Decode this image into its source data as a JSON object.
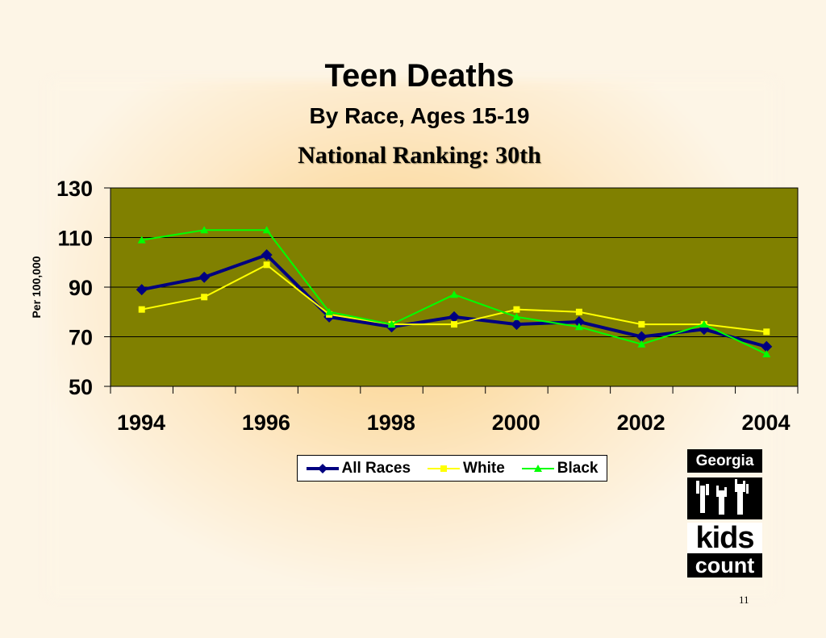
{
  "title": "Teen Deaths",
  "subtitle": "By Race, Ages 15-19",
  "ranking": "National Ranking: 30th",
  "page_number": "11",
  "logo": {
    "top": "Georgia",
    "middle": "kids",
    "bottom": "count"
  },
  "colors": {
    "plot_bg": "#808000",
    "all_races": "#000080",
    "white": "#ffff00",
    "black": "#00ff00"
  },
  "chart_data": {
    "type": "line",
    "title": "Teen Deaths",
    "ylabel": "Per 100,000",
    "xlabel": "",
    "ylim": [
      50,
      130
    ],
    "yticks": [
      50,
      70,
      90,
      110,
      130
    ],
    "xlim": [
      1994,
      2005
    ],
    "xtick_labels": [
      "1994",
      "1996",
      "1998",
      "2000",
      "2002",
      "2004"
    ],
    "x": [
      1994,
      1995,
      1996,
      1997,
      1998,
      1999,
      2000,
      2001,
      2002,
      2003,
      2004
    ],
    "grid": true,
    "legend_position": "bottom",
    "series": [
      {
        "name": "All Races",
        "color": "#000080",
        "marker": "diamond",
        "values": [
          89,
          94,
          103,
          78,
          74,
          78,
          75,
          76,
          70,
          73,
          66
        ]
      },
      {
        "name": "White",
        "color": "#ffff00",
        "marker": "square",
        "values": [
          81,
          86,
          99,
          79,
          75,
          75,
          81,
          80,
          75,
          75,
          72
        ]
      },
      {
        "name": "Black",
        "color": "#00ff00",
        "marker": "triangle",
        "values": [
          109,
          113,
          113,
          80,
          75,
          87,
          78,
          74,
          67,
          75,
          63
        ]
      }
    ]
  }
}
